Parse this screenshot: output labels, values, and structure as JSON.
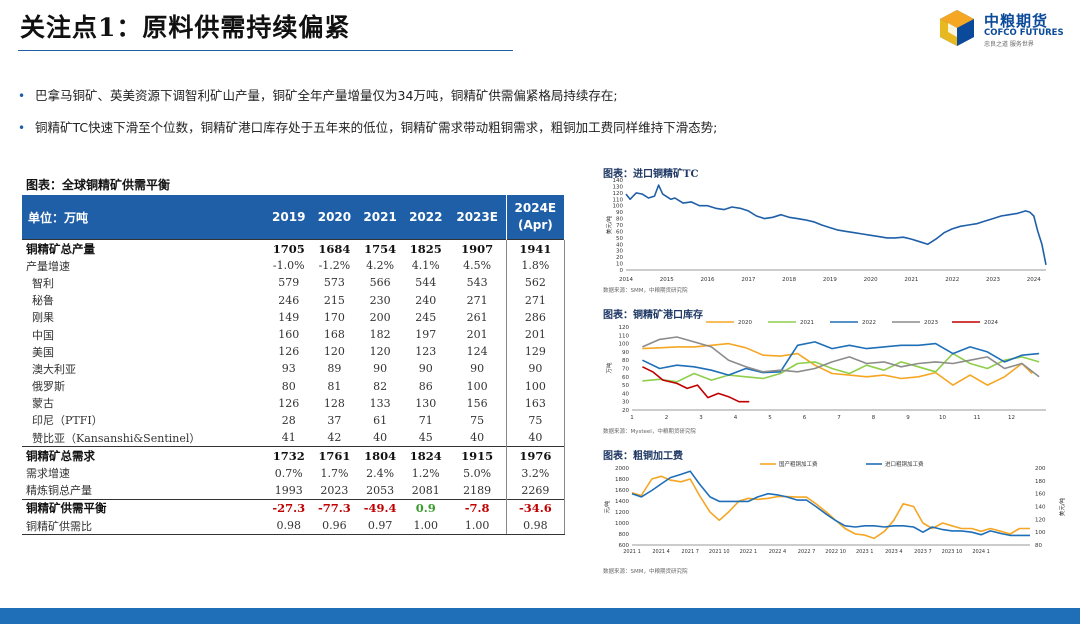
{
  "title": "关注点1：原料供需持续偏紧",
  "logo": {
    "cn": "中粮期货",
    "en": "COFCO FUTURES",
    "slogan": "忠良之道 服务世界"
  },
  "bullets": [
    "巴拿马铜矿、英美资源下调智利矿山产量，铜矿全年产量增量仅为34万吨，铜精矿供需偏紧格局持续存在;",
    "铜精矿TC快速下滑至个位数，铜精矿港口库存处于五年来的低位，铜精矿需求带动粗铜需求，粗铜加工费同样维持下滑态势;"
  ],
  "table": {
    "title": "图表：全球铜精矿供需平衡",
    "header": [
      "单位：万吨",
      "2019",
      "2020",
      "2021",
      "2022",
      "2023E",
      "2024E\n(Apr)"
    ],
    "rows": [
      {
        "style": "bold",
        "cells": [
          "铜精矿总产量",
          "1705",
          "1684",
          "1754",
          "1825",
          "1907",
          "1941"
        ]
      },
      {
        "style": "normal",
        "cells": [
          "产量增速",
          "-1.0%",
          "-1.2%",
          "4.2%",
          "4.1%",
          "4.5%",
          "1.8%"
        ]
      },
      {
        "style": "sub",
        "cells": [
          "智利",
          "579",
          "573",
          "566",
          "544",
          "543",
          "562"
        ]
      },
      {
        "style": "sub",
        "cells": [
          "秘鲁",
          "246",
          "215",
          "230",
          "240",
          "271",
          "271"
        ]
      },
      {
        "style": "sub",
        "cells": [
          "刚果",
          "149",
          "170",
          "200",
          "245",
          "261",
          "286"
        ]
      },
      {
        "style": "sub",
        "cells": [
          "中国",
          "160",
          "168",
          "182",
          "197",
          "201",
          "201"
        ]
      },
      {
        "style": "sub",
        "cells": [
          "美国",
          "126",
          "120",
          "120",
          "123",
          "124",
          "129"
        ]
      },
      {
        "style": "sub",
        "cells": [
          "澳大利亚",
          "93",
          "89",
          "90",
          "90",
          "90",
          "90"
        ]
      },
      {
        "style": "sub",
        "cells": [
          "俄罗斯",
          "80",
          "81",
          "82",
          "86",
          "100",
          "100"
        ]
      },
      {
        "style": "sub",
        "cells": [
          "蒙古",
          "126",
          "128",
          "133",
          "130",
          "156",
          "163"
        ]
      },
      {
        "style": "sub",
        "cells": [
          "印尼（PTFI）",
          "28",
          "37",
          "61",
          "71",
          "75",
          "75"
        ]
      },
      {
        "style": "sub",
        "cells": [
          "赞比亚（Kansanshi&Sentinel）",
          "41",
          "42",
          "40",
          "45",
          "40",
          "40"
        ]
      },
      {
        "style": "bold",
        "cells": [
          "铜精矿总需求",
          "1732",
          "1761",
          "1804",
          "1824",
          "1915",
          "1976"
        ]
      },
      {
        "style": "normal",
        "cells": [
          "需求增速",
          "0.7%",
          "1.7%",
          "2.4%",
          "1.2%",
          "5.0%",
          "3.2%"
        ]
      },
      {
        "style": "normal",
        "cells": [
          "精炼铜总产量",
          "1993",
          "2023",
          "2053",
          "2081",
          "2189",
          "2269"
        ]
      },
      {
        "style": "bold",
        "cells": [
          "铜精矿供需平衡",
          "-27.3",
          "-77.3",
          "-49.4",
          "0.9",
          "-7.8",
          "-34.6"
        ]
      },
      {
        "style": "last",
        "cells": [
          "铜精矿供需比",
          "0.98",
          "0.96",
          "0.97",
          "1.00",
          "1.00",
          "0.98"
        ]
      }
    ]
  },
  "colors": {
    "header_bg": "#1f5fa8",
    "negative": "#c00000",
    "positive": "#3a9b2f",
    "series_2020": "#f5a623",
    "series_2021": "#8fce4b",
    "series_2022": "#1f6fb8",
    "series_2023": "#8c8c8c",
    "series_2024": "#c00000",
    "domestic_blister": "#f5a623",
    "imported_blister": "#1f6fb8",
    "footer": "#1f6fb8"
  },
  "chart_data": [
    {
      "id": "tc",
      "type": "line",
      "title": "图表：进口铜精矿TC",
      "ylabel": "美元/吨",
      "xlabel": "",
      "ylim": [
        0,
        140
      ],
      "yticks": [
        0,
        10,
        20,
        30,
        40,
        50,
        60,
        70,
        80,
        90,
        100,
        110,
        120,
        130,
        140
      ],
      "xlim": [
        2014,
        2024.3
      ],
      "xticks": [
        2014,
        2015,
        2016,
        2017,
        2018,
        2019,
        2020,
        2021,
        2022,
        2023,
        2024
      ],
      "series": [
        {
          "name": "进口铜精矿TC",
          "color": "#1f5fa8",
          "x": [
            2014,
            2014.1,
            2014.25,
            2014.4,
            2014.55,
            2014.7,
            2014.8,
            2014.9,
            2015.0,
            2015.1,
            2015.2,
            2015.3,
            2015.4,
            2015.6,
            2015.8,
            2016.0,
            2016.2,
            2016.4,
            2016.6,
            2016.8,
            2017.0,
            2017.2,
            2017.4,
            2017.6,
            2017.8,
            2018.0,
            2018.2,
            2018.4,
            2018.6,
            2018.8,
            2019.0,
            2019.2,
            2019.4,
            2019.6,
            2019.8,
            2020.0,
            2020.2,
            2020.4,
            2020.6,
            2020.8,
            2021.0,
            2021.2,
            2021.4,
            2021.6,
            2021.8,
            2022.0,
            2022.2,
            2022.4,
            2022.6,
            2022.8,
            2023.0,
            2023.2,
            2023.4,
            2023.6,
            2023.8,
            2023.9,
            2024.0,
            2024.1,
            2024.2,
            2024.3
          ],
          "values": [
            118,
            110,
            120,
            118,
            112,
            115,
            132,
            118,
            114,
            110,
            112,
            108,
            104,
            106,
            100,
            100,
            96,
            94,
            98,
            96,
            92,
            84,
            80,
            82,
            86,
            82,
            80,
            78,
            75,
            70,
            66,
            62,
            60,
            58,
            56,
            54,
            52,
            50,
            50,
            51,
            48,
            44,
            40,
            48,
            58,
            64,
            68,
            70,
            72,
            76,
            80,
            84,
            86,
            88,
            92,
            90,
            84,
            60,
            40,
            8
          ]
        }
      ],
      "source": "数据来源：SMM，中粮期货研究院"
    },
    {
      "id": "port",
      "type": "line",
      "title": "图表：铜精矿港口库存",
      "ylabel": "万吨",
      "xlabel": "",
      "ylim": [
        20,
        120
      ],
      "yticks": [
        20,
        30,
        40,
        50,
        60,
        70,
        80,
        90,
        100,
        110,
        120
      ],
      "xlim": [
        1,
        13
      ],
      "xticks": [
        1,
        2,
        3,
        4,
        5,
        6,
        7,
        8,
        9,
        10,
        11,
        12
      ],
      "series": [
        {
          "name": "2020",
          "color": "#f5a623",
          "x": [
            1.3,
            1.8,
            2.3,
            2.8,
            3.3,
            3.8,
            4.3,
            4.8,
            5.3,
            5.8,
            6.3,
            6.8,
            7.3,
            7.8,
            8.3,
            8.8,
            9.3,
            9.8,
            10.3,
            10.8,
            11.3,
            11.8,
            12.3,
            12.6
          ],
          "values": [
            94,
            95,
            96,
            96,
            98,
            100,
            95,
            86,
            85,
            88,
            74,
            64,
            62,
            60,
            62,
            58,
            60,
            65,
            50,
            62,
            50,
            60,
            76,
            64
          ]
        },
        {
          "name": "2021",
          "color": "#8fce4b",
          "x": [
            1.3,
            1.8,
            2.3,
            2.8,
            3.3,
            3.8,
            4.3,
            4.8,
            5.3,
            5.8,
            6.3,
            6.8,
            7.3,
            7.8,
            8.3,
            8.8,
            9.3,
            9.8,
            10.3,
            10.8,
            11.3,
            11.8,
            12.3,
            12.8
          ],
          "values": [
            55,
            57,
            54,
            64,
            56,
            62,
            60,
            58,
            64,
            76,
            78,
            70,
            64,
            74,
            68,
            78,
            72,
            66,
            88,
            76,
            70,
            80,
            84,
            78
          ]
        },
        {
          "name": "2022",
          "color": "#1f6fb8",
          "x": [
            1.3,
            1.8,
            2.3,
            2.8,
            3.3,
            3.8,
            4.3,
            4.8,
            5.3,
            5.8,
            6.3,
            6.8,
            7.3,
            7.8,
            8.3,
            8.8,
            9.3,
            9.8,
            10.3,
            10.8,
            11.3,
            11.8,
            12.3,
            12.8
          ],
          "values": [
            80,
            70,
            74,
            72,
            68,
            62,
            70,
            65,
            66,
            98,
            102,
            94,
            98,
            94,
            96,
            98,
            98,
            100,
            88,
            96,
            90,
            78,
            86,
            88
          ]
        },
        {
          "name": "2023",
          "color": "#8c8c8c",
          "x": [
            1.3,
            1.8,
            2.3,
            2.8,
            3.3,
            3.8,
            4.3,
            4.8,
            5.3,
            5.8,
            6.3,
            6.8,
            7.3,
            7.8,
            8.3,
            8.8,
            9.3,
            9.8,
            10.3,
            10.8,
            11.3,
            11.8,
            12.3,
            12.8
          ],
          "values": [
            96,
            105,
            108,
            102,
            96,
            80,
            72,
            66,
            68,
            66,
            70,
            78,
            84,
            76,
            78,
            72,
            76,
            78,
            76,
            80,
            84,
            70,
            76,
            60
          ]
        },
        {
          "name": "2024",
          "color": "#c00000",
          "x": [
            1.3,
            1.6,
            1.9,
            2.3,
            2.6,
            2.9,
            3.2,
            3.5,
            3.8,
            4.1,
            4.4
          ],
          "values": [
            72,
            66,
            56,
            52,
            46,
            50,
            35,
            40,
            36,
            30,
            30
          ]
        }
      ],
      "source": "数据来源：Mysteel，中粮期货研究院"
    },
    {
      "id": "blister",
      "type": "line",
      "title": "图表：粗铜加工费",
      "ylabel": "元/吨",
      "y2label": "美元/吨",
      "xlabel": "",
      "ylim": [
        600,
        2000
      ],
      "yticks": [
        600,
        800,
        1000,
        1200,
        1400,
        1600,
        1800,
        2000
      ],
      "y2lim": [
        80,
        200
      ],
      "y2ticks": [
        80,
        100,
        120,
        140,
        160,
        180,
        200
      ],
      "xlim": [
        2021.0,
        2024.42
      ],
      "xticks": [
        "2021 1",
        "2021 4",
        "2021 7",
        "2021 10",
        "2022 1",
        "2022 4",
        "2022 7",
        "2022 10",
        "2023 1",
        "2023 4",
        "2023 7",
        "2023 10",
        "2024 1"
      ],
      "xtick_values": [
        2021.0,
        2021.25,
        2021.5,
        2021.75,
        2022.0,
        2022.25,
        2022.5,
        2022.75,
        2023.0,
        2023.25,
        2023.5,
        2023.75,
        2024.0
      ],
      "series": [
        {
          "name": "国产粗铜加工费",
          "color": "#f5a623",
          "axis": "left",
          "x": [
            2021.0,
            2021.08,
            2021.17,
            2021.25,
            2021.33,
            2021.42,
            2021.5,
            2021.58,
            2021.67,
            2021.75,
            2021.83,
            2021.92,
            2022.0,
            2022.08,
            2022.17,
            2022.25,
            2022.33,
            2022.42,
            2022.5,
            2022.58,
            2022.67,
            2022.75,
            2022.83,
            2022.92,
            2023.0,
            2023.08,
            2023.17,
            2023.25,
            2023.33,
            2023.42,
            2023.5,
            2023.58,
            2023.67,
            2023.75,
            2023.83,
            2023.92,
            2024.0,
            2024.08,
            2024.17,
            2024.25,
            2024.33,
            2024.42
          ],
          "values": [
            1550,
            1500,
            1800,
            1850,
            1780,
            1750,
            1800,
            1500,
            1200,
            1050,
            1200,
            1400,
            1450,
            1430,
            1450,
            1480,
            1480,
            1470,
            1470,
            1350,
            1200,
            1050,
            900,
            800,
            780,
            720,
            850,
            1050,
            1350,
            1300,
            1000,
            900,
            1000,
            950,
            900,
            900,
            850,
            900,
            850,
            800,
            900,
            900
          ]
        },
        {
          "name": "进口粗铜加工费",
          "color": "#1f6fb8",
          "axis": "right",
          "x": [
            2021.0,
            2021.08,
            2021.17,
            2021.25,
            2021.33,
            2021.42,
            2021.5,
            2021.58,
            2021.67,
            2021.75,
            2021.83,
            2021.92,
            2022.0,
            2022.08,
            2022.17,
            2022.25,
            2022.33,
            2022.42,
            2022.5,
            2022.58,
            2022.67,
            2022.75,
            2022.83,
            2022.92,
            2023.0,
            2023.08,
            2023.17,
            2023.25,
            2023.33,
            2023.42,
            2023.5,
            2023.58,
            2023.67,
            2023.75,
            2023.83,
            2023.92,
            2024.0,
            2024.08,
            2024.17,
            2024.25,
            2024.33,
            2024.42
          ],
          "values": [
            160,
            155,
            165,
            175,
            185,
            190,
            195,
            175,
            155,
            148,
            148,
            148,
            148,
            155,
            160,
            158,
            155,
            150,
            150,
            140,
            128,
            118,
            110,
            108,
            110,
            110,
            108,
            110,
            110,
            108,
            100,
            108,
            104,
            102,
            102,
            100,
            96,
            102,
            98,
            95,
            95,
            95
          ]
        }
      ],
      "source": "数据来源：SMM，中粮期货研究院"
    }
  ]
}
